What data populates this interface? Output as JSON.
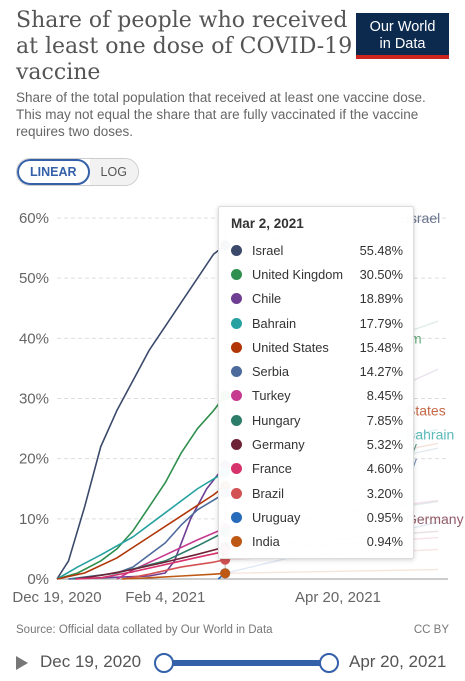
{
  "header": {
    "title": "Share of people who received at least one dose of COVID-19 vaccine",
    "subtitle": "Share of the total population that received at least one vaccine dose. This may not equal the share that are fully vaccinated if the vaccine requires two doses.",
    "logo_line1": "Our World",
    "logo_line2": "in Data"
  },
  "controls": {
    "linear_label": "LINEAR",
    "log_label": "LOG",
    "selected": "LINEAR"
  },
  "tooltip": {
    "date": "Mar 2, 2021",
    "rows": [
      {
        "name": "Israel",
        "value": "55.48%"
      },
      {
        "name": "United Kingdom",
        "value": "30.50%"
      },
      {
        "name": "Chile",
        "value": "18.89%"
      },
      {
        "name": "Bahrain",
        "value": "17.79%"
      },
      {
        "name": "United States",
        "value": "15.48%"
      },
      {
        "name": "Serbia",
        "value": "14.27%"
      },
      {
        "name": "Turkey",
        "value": "8.45%"
      },
      {
        "name": "Hungary",
        "value": "7.85%"
      },
      {
        "name": "Germany",
        "value": "5.32%"
      },
      {
        "name": "France",
        "value": "4.60%"
      },
      {
        "name": "Brazil",
        "value": "3.20%"
      },
      {
        "name": "Uruguay",
        "value": "0.95%"
      },
      {
        "name": "India",
        "value": "0.94%"
      }
    ]
  },
  "chart_data": {
    "type": "line",
    "title": "Share of people who received at least one dose of COVID-19 vaccine",
    "y_ticks": [
      "0%",
      "10%",
      "20%",
      "30%",
      "40%",
      "50%",
      "60%"
    ],
    "x_ticks": [
      "Dec 19, 2020",
      "Feb 4, 2021",
      "Apr 20, 2021"
    ],
    "x_range": [
      "2020-12-19",
      "2021-04-20"
    ],
    "y_range": [
      0,
      60
    ],
    "hover_date": "2021-03-02",
    "grid": "horizontal dashed",
    "end_labels": [
      {
        "text": "Israel",
        "series": "Israel"
      },
      {
        "text": "m",
        "series": "United Kingdom"
      },
      {
        "text": "States",
        "series": "United States"
      },
      {
        "text": "Bahrain",
        "series": "Bahrain"
      },
      {
        "text": "y",
        "series": "Hungary"
      },
      {
        "text": "y",
        "series": "Serbia"
      },
      {
        "text": "Germany",
        "series": "Germany"
      }
    ],
    "series": [
      {
        "name": "Israel",
        "color": "#3b4a6b",
        "points": [
          [
            "2020-12-19",
            0
          ],
          [
            "2020-12-24",
            3
          ],
          [
            "2020-12-31",
            12
          ],
          [
            "2021-01-07",
            22
          ],
          [
            "2021-01-14",
            28
          ],
          [
            "2021-01-21",
            33
          ],
          [
            "2021-01-28",
            38
          ],
          [
            "2021-02-04",
            42
          ],
          [
            "2021-02-11",
            46
          ],
          [
            "2021-02-18",
            50
          ],
          [
            "2021-02-25",
            54
          ],
          [
            "2021-03-02",
            55.48
          ]
        ]
      },
      {
        "name": "United Kingdom",
        "color": "#2f8f4e",
        "points": [
          [
            "2020-12-19",
            0
          ],
          [
            "2020-12-28",
            1
          ],
          [
            "2021-01-07",
            3
          ],
          [
            "2021-01-14",
            5
          ],
          [
            "2021-01-21",
            8
          ],
          [
            "2021-01-28",
            12
          ],
          [
            "2021-02-04",
            16
          ],
          [
            "2021-02-11",
            21
          ],
          [
            "2021-02-18",
            25
          ],
          [
            "2021-02-25",
            28
          ],
          [
            "2021-03-02",
            30.5
          ]
        ]
      },
      {
        "name": "Chile",
        "color": "#6d3e91",
        "points": [
          [
            "2020-12-24",
            0
          ],
          [
            "2021-01-28",
            0.5
          ],
          [
            "2021-02-04",
            1
          ],
          [
            "2021-02-08",
            3
          ],
          [
            "2021-02-15",
            10
          ],
          [
            "2021-02-22",
            15
          ],
          [
            "2021-03-02",
            18.89
          ]
        ]
      },
      {
        "name": "Bahrain",
        "color": "#27a1a1",
        "points": [
          [
            "2020-12-19",
            0
          ],
          [
            "2020-12-28",
            2
          ],
          [
            "2021-01-07",
            4
          ],
          [
            "2021-01-21",
            7
          ],
          [
            "2021-02-04",
            11
          ],
          [
            "2021-02-18",
            15
          ],
          [
            "2021-03-02",
            17.79
          ]
        ]
      },
      {
        "name": "United States",
        "color": "#b13507",
        "points": [
          [
            "2020-12-19",
            0
          ],
          [
            "2020-12-31",
            1
          ],
          [
            "2021-01-14",
            3.5
          ],
          [
            "2021-01-28",
            7
          ],
          [
            "2021-02-11",
            10.5
          ],
          [
            "2021-02-25",
            14
          ],
          [
            "2021-03-02",
            15.48
          ]
        ]
      },
      {
        "name": "Serbia",
        "color": "#4c6a9c",
        "points": [
          [
            "2020-12-24",
            0
          ],
          [
            "2021-01-14",
            1
          ],
          [
            "2021-01-21",
            2
          ],
          [
            "2021-02-04",
            6
          ],
          [
            "2021-02-11",
            9
          ],
          [
            "2021-02-18",
            11.5
          ],
          [
            "2021-03-02",
            14.27
          ]
        ]
      },
      {
        "name": "Turkey",
        "color": "#c53a8f",
        "points": [
          [
            "2021-01-14",
            0
          ],
          [
            "2021-01-21",
            1.5
          ],
          [
            "2021-02-04",
            4
          ],
          [
            "2021-02-18",
            6.5
          ],
          [
            "2021-03-02",
            8.45
          ]
        ]
      },
      {
        "name": "Hungary",
        "color": "#2c7d6a",
        "points": [
          [
            "2020-12-26",
            0
          ],
          [
            "2021-01-14",
            1
          ],
          [
            "2021-02-04",
            3
          ],
          [
            "2021-02-18",
            5.5
          ],
          [
            "2021-03-02",
            7.85
          ]
        ]
      },
      {
        "name": "Germany",
        "color": "#6e2236",
        "points": [
          [
            "2020-12-27",
            0
          ],
          [
            "2021-01-07",
            0.6
          ],
          [
            "2021-01-21",
            1.6
          ],
          [
            "2021-02-04",
            2.8
          ],
          [
            "2021-02-18",
            4.1
          ],
          [
            "2021-03-02",
            5.32
          ]
        ]
      },
      {
        "name": "France",
        "color": "#d6336c",
        "points": [
          [
            "2020-12-27",
            0
          ],
          [
            "2021-01-07",
            0.2
          ],
          [
            "2021-01-21",
            1.2
          ],
          [
            "2021-02-04",
            2.4
          ],
          [
            "2021-02-18",
            3.6
          ],
          [
            "2021-03-02",
            4.6
          ]
        ]
      },
      {
        "name": "Brazil",
        "color": "#d35354",
        "points": [
          [
            "2021-01-17",
            0
          ],
          [
            "2021-01-28",
            0.8
          ],
          [
            "2021-02-11",
            2
          ],
          [
            "2021-02-25",
            2.8
          ],
          [
            "2021-03-02",
            3.2
          ]
        ]
      },
      {
        "name": "Uruguay",
        "color": "#286bbb",
        "points": [
          [
            "2021-02-27",
            0
          ],
          [
            "2021-03-02",
            0.95
          ]
        ]
      },
      {
        "name": "India",
        "color": "#be5915",
        "points": [
          [
            "2021-01-16",
            0
          ],
          [
            "2021-01-28",
            0.2
          ],
          [
            "2021-02-11",
            0.5
          ],
          [
            "2021-02-25",
            0.8
          ],
          [
            "2021-03-02",
            0.94
          ]
        ]
      }
    ],
    "faded_after_hover": true
  },
  "footer": {
    "source": "Source: Official data collated by Our World in Data",
    "license": "CC BY"
  },
  "timeline": {
    "start_label": "Dec 19, 2020",
    "end_label": "Apr 20, 2021"
  }
}
